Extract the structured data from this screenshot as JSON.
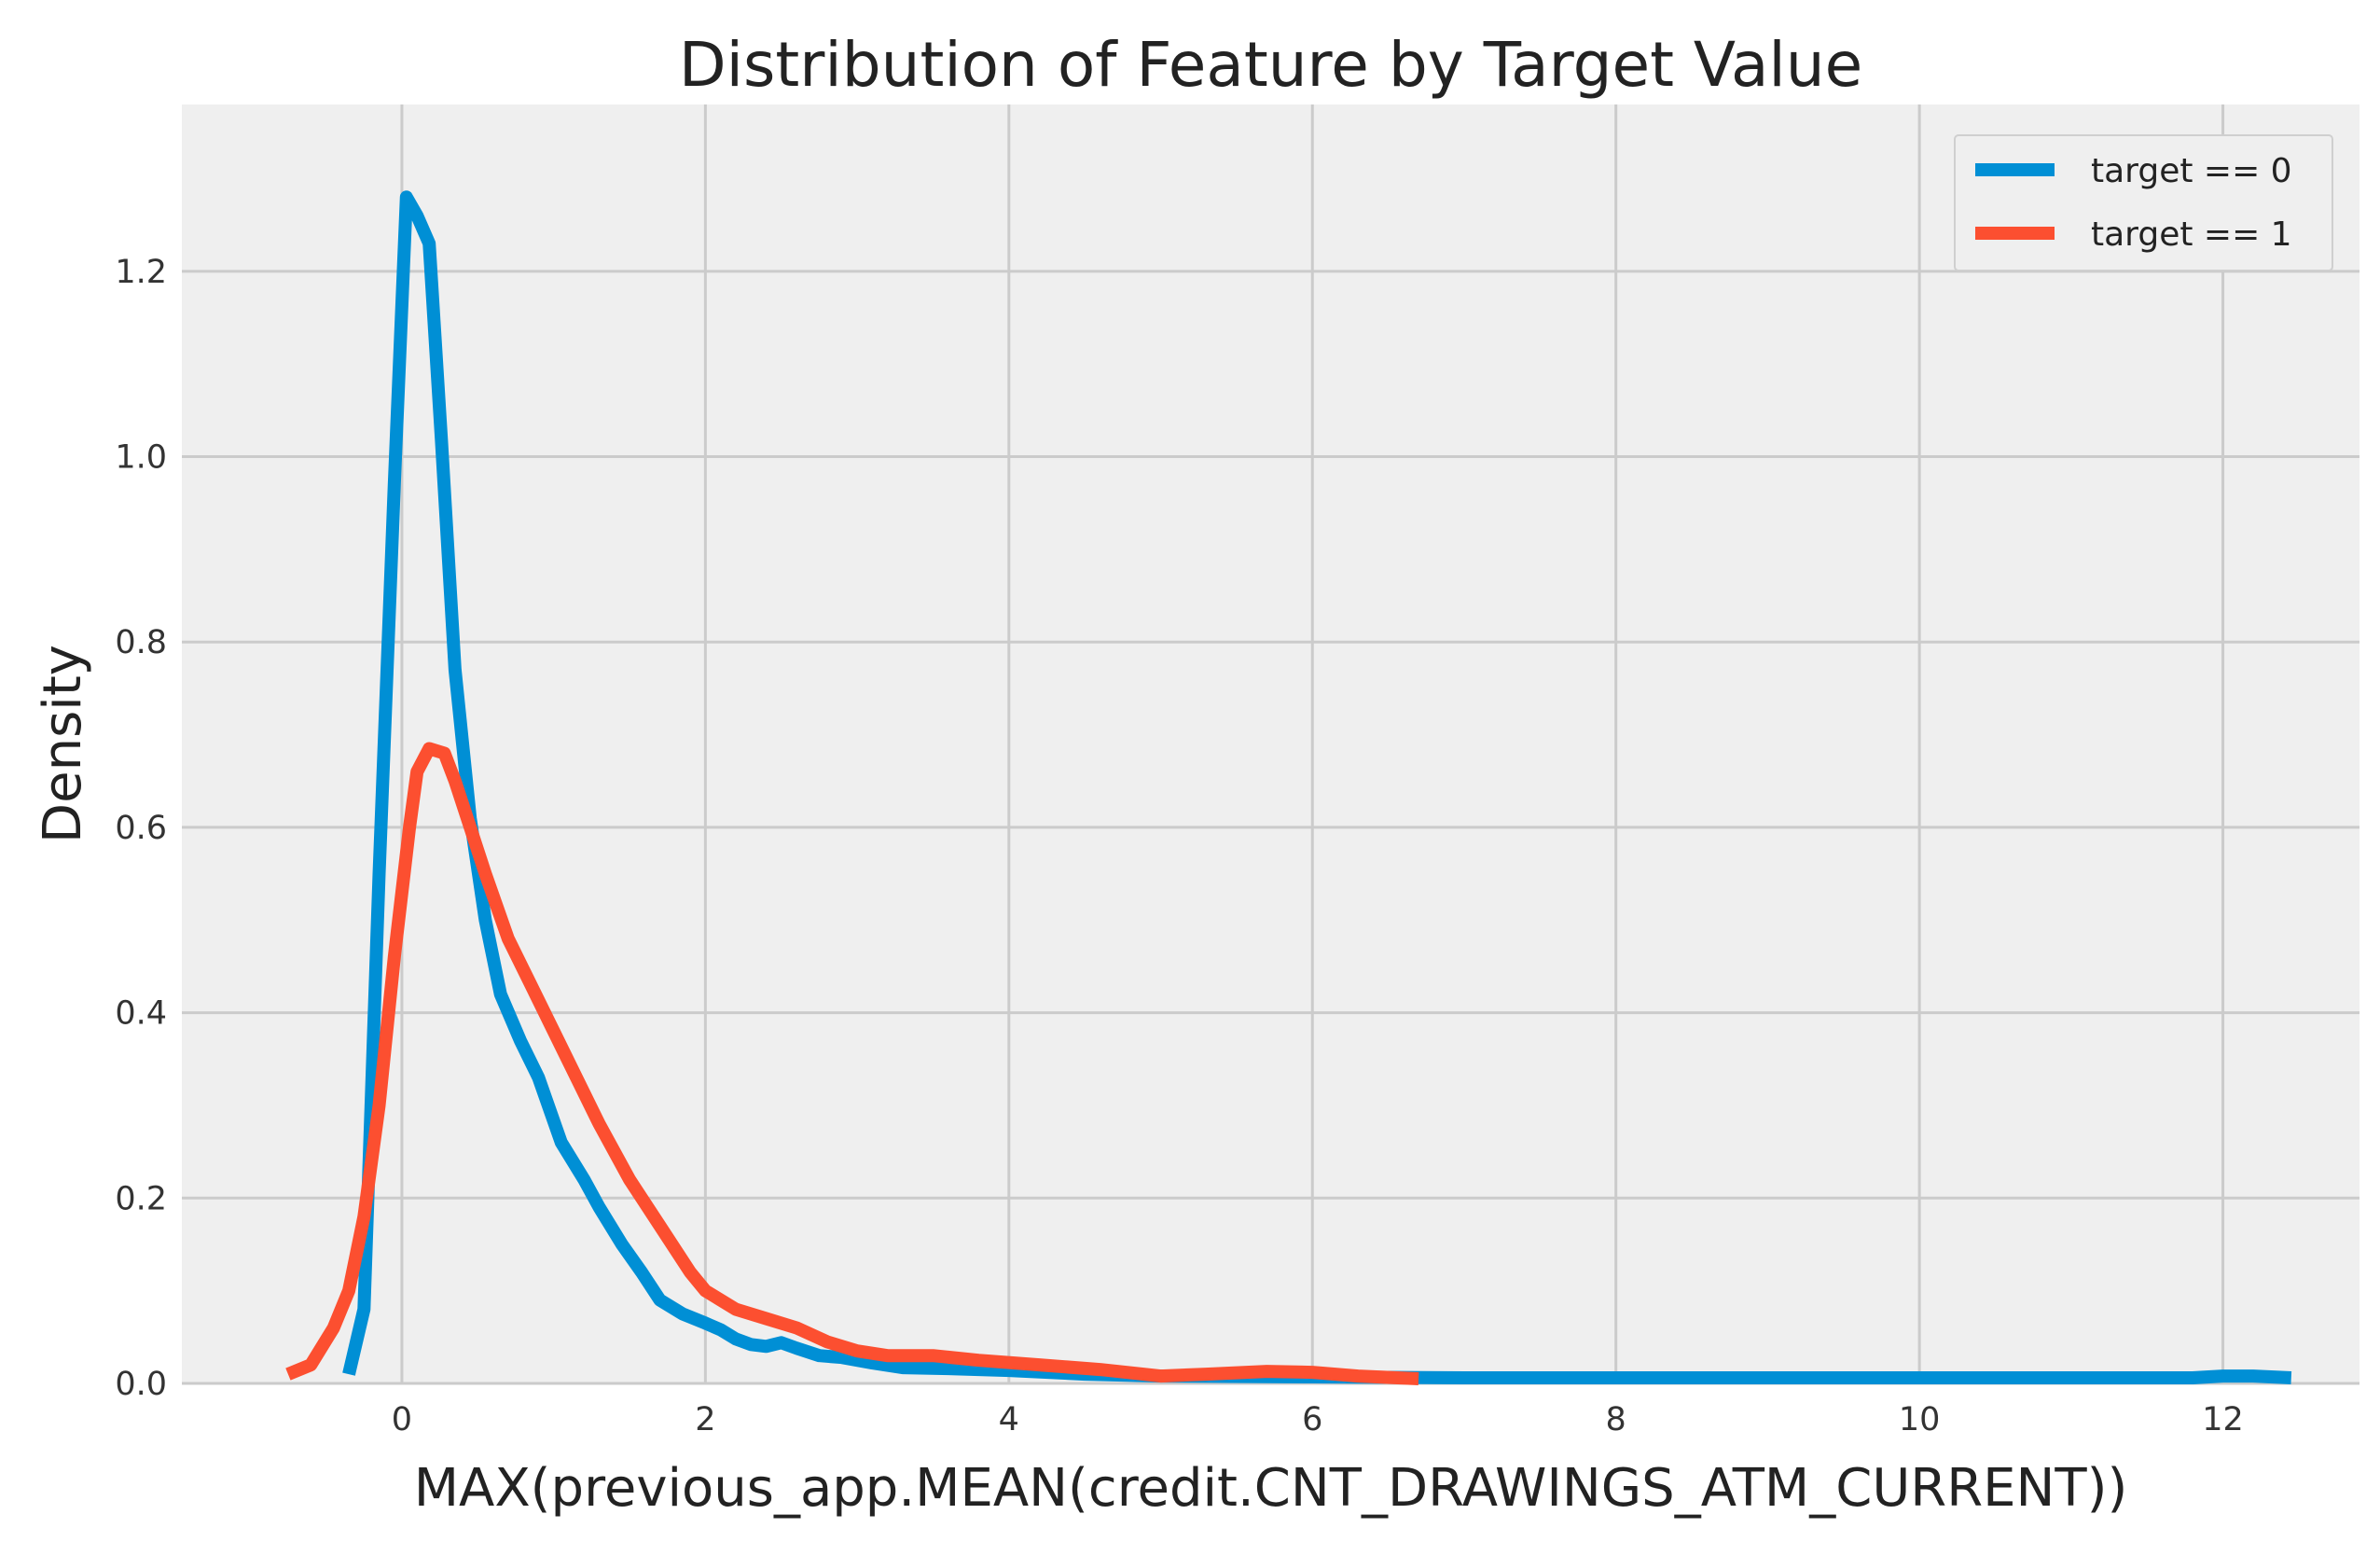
{
  "chart_data": {
    "type": "line",
    "title": "Distribution of Feature by Target Value",
    "xlabel": "MAX(previous_app.MEAN(credit.CNT_DRAWINGS_ATM_CURRENT))",
    "ylabel": "Density",
    "xlim": [
      -1.45,
      12.9
    ],
    "ylim": [
      0,
      1.38
    ],
    "xticks": [
      0,
      2,
      4,
      6,
      8,
      10,
      12
    ],
    "yticks": [
      0.0,
      0.2,
      0.4,
      0.6,
      0.8,
      1.0,
      1.2
    ],
    "xtick_labels": [
      "0",
      "2",
      "4",
      "6",
      "8",
      "10",
      "12"
    ],
    "ytick_labels": [
      "0.0",
      "0.2",
      "0.4",
      "0.6",
      "0.8",
      "1.0",
      "1.2"
    ],
    "grid": true,
    "legend_position": "top-right",
    "colors": {
      "plot_background": "#efefef",
      "grid": "#cbcbcb"
    },
    "series": [
      {
        "name": "target == 0",
        "color": "#008fd5",
        "x": [
          -0.35,
          -0.25,
          -0.15,
          -0.05,
          0.03,
          0.1,
          0.18,
          0.26,
          0.35,
          0.45,
          0.55,
          0.65,
          0.78,
          0.9,
          1.05,
          1.2,
          1.3,
          1.45,
          1.58,
          1.7,
          1.85,
          2.0,
          2.1,
          2.2,
          2.3,
          2.4,
          2.5,
          2.6,
          2.75,
          2.9,
          3.1,
          3.3,
          3.6,
          4.0,
          4.5,
          5.0,
          6.0,
          7.0,
          8.0,
          9.0,
          10.0,
          11.0,
          11.8,
          12.0,
          12.2,
          12.45
        ],
        "y": [
          0.01,
          0.08,
          0.55,
          0.97,
          1.28,
          1.26,
          1.23,
          1.02,
          0.77,
          0.61,
          0.5,
          0.42,
          0.37,
          0.33,
          0.26,
          0.22,
          0.19,
          0.15,
          0.12,
          0.09,
          0.075,
          0.065,
          0.058,
          0.048,
          0.042,
          0.04,
          0.044,
          0.038,
          0.03,
          0.028,
          0.022,
          0.017,
          0.016,
          0.014,
          0.01,
          0.008,
          0.007,
          0.006,
          0.006,
          0.006,
          0.006,
          0.006,
          0.006,
          0.008,
          0.008,
          0.006
        ]
      },
      {
        "name": "target == 1",
        "color": "#fc4f30",
        "x": [
          -0.75,
          -0.6,
          -0.45,
          -0.35,
          -0.25,
          -0.15,
          -0.05,
          0.05,
          0.1,
          0.18,
          0.28,
          0.35,
          0.45,
          0.55,
          0.7,
          0.85,
          1.0,
          1.15,
          1.3,
          1.5,
          1.7,
          1.9,
          2.0,
          2.2,
          2.4,
          2.6,
          2.8,
          3.0,
          3.2,
          3.5,
          3.8,
          4.2,
          4.6,
          5.0,
          5.3,
          5.7,
          6.0,
          6.3,
          6.7
        ],
        "y": [
          0.01,
          0.02,
          0.06,
          0.1,
          0.18,
          0.3,
          0.46,
          0.6,
          0.66,
          0.685,
          0.68,
          0.65,
          0.6,
          0.55,
          0.48,
          0.43,
          0.38,
          0.33,
          0.28,
          0.22,
          0.17,
          0.12,
          0.1,
          0.08,
          0.07,
          0.06,
          0.045,
          0.035,
          0.03,
          0.03,
          0.025,
          0.02,
          0.015,
          0.008,
          0.01,
          0.013,
          0.012,
          0.008,
          0.005
        ]
      }
    ]
  }
}
